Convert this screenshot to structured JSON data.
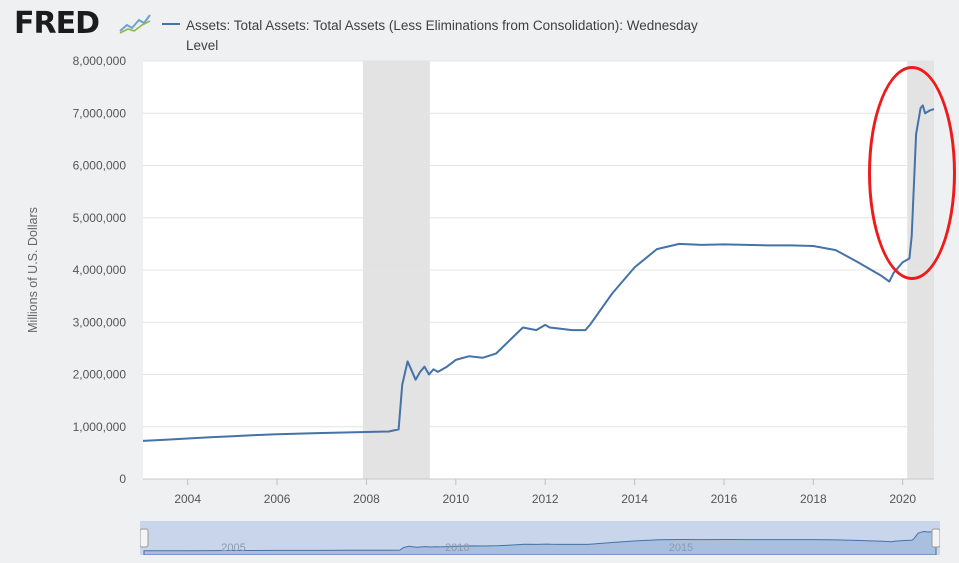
{
  "header": {
    "logo_text": "FRED",
    "logo_icon": "chart-line-icon"
  },
  "legend": {
    "line1": "Assets: Total Assets: Total Assets (Less Eliminations from Consolidation): Wednesday",
    "line2": "Level",
    "color": "#4572a7"
  },
  "colors": {
    "line": "#4572a7",
    "recession": "#e3e3e3",
    "annotation": "#ee1b1b",
    "navigator_fill": "#c8d5ea",
    "navigator_line": "#4572a7"
  },
  "navigator": {
    "labels": [
      "2005",
      "2010",
      "2015"
    ]
  },
  "chart_data": {
    "type": "line",
    "title": "",
    "ylabel": "Millions of U.S. Dollars",
    "xlabel": "",
    "xlim": [
      2003.0,
      2020.7
    ],
    "ylim": [
      0,
      8000000
    ],
    "yticks": [
      "0",
      "1,000,000",
      "2,000,000",
      "3,000,000",
      "4,000,000",
      "5,000,000",
      "6,000,000",
      "7,000,000",
      "8,000,000"
    ],
    "xticks": [
      "2004",
      "2006",
      "2008",
      "2010",
      "2012",
      "2014",
      "2016",
      "2018",
      "2020"
    ],
    "grid": true,
    "recessions": [
      [
        2007.92,
        2009.42
      ],
      [
        2020.1,
        2020.7
      ]
    ],
    "annotation": "red ellipse highlighting 2020 spike",
    "series": [
      {
        "name": "Assets: Total Assets: Total Assets (Less Eliminations from Consolidation): Wednesday Level",
        "x": [
          2003.0,
          2003.5,
          2004.0,
          2004.5,
          2005.0,
          2005.5,
          2006.0,
          2006.5,
          2007.0,
          2007.5,
          2008.0,
          2008.5,
          2008.72,
          2008.8,
          2008.92,
          2009.0,
          2009.1,
          2009.2,
          2009.3,
          2009.4,
          2009.5,
          2009.6,
          2009.8,
          2010.0,
          2010.3,
          2010.6,
          2010.9,
          2011.2,
          2011.5,
          2011.8,
          2012.0,
          2012.1,
          2012.3,
          2012.6,
          2012.9,
          2013.0,
          2013.5,
          2014.0,
          2014.5,
          2015.0,
          2015.5,
          2016.0,
          2016.5,
          2017.0,
          2017.5,
          2018.0,
          2018.5,
          2019.0,
          2019.5,
          2019.7,
          2019.8,
          2020.0,
          2020.15,
          2020.2,
          2020.3,
          2020.4,
          2020.45,
          2020.5,
          2020.6,
          2020.7
        ],
        "y": [
          730000,
          750000,
          775000,
          800000,
          820000,
          840000,
          855000,
          868000,
          880000,
          890000,
          900000,
          910000,
          950000,
          1800000,
          2250000,
          2100000,
          1900000,
          2050000,
          2150000,
          2000000,
          2100000,
          2050000,
          2150000,
          2280000,
          2350000,
          2320000,
          2400000,
          2650000,
          2900000,
          2850000,
          2950000,
          2900000,
          2880000,
          2850000,
          2850000,
          2950000,
          3550000,
          4050000,
          4400000,
          4500000,
          4480000,
          4490000,
          4480000,
          4470000,
          4470000,
          4460000,
          4380000,
          4150000,
          3900000,
          3780000,
          3950000,
          4150000,
          4220000,
          4650000,
          6600000,
          7100000,
          7150000,
          7000000,
          7050000,
          7080000
        ]
      }
    ]
  }
}
